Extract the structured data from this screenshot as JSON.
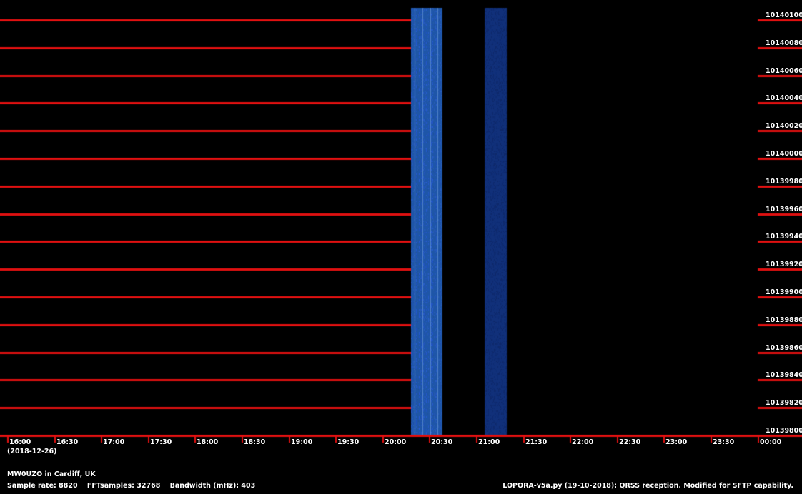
{
  "plot": {
    "background_color": "#000000",
    "grid_color": "#e01010",
    "signal_color": "#1e56a8"
  },
  "frequency_axis": {
    "unit": "Hz",
    "min": 10139800,
    "max": 10140100,
    "step": 20,
    "labels": [
      "10140100",
      "10140080",
      "10140060",
      "10140040",
      "10140020",
      "10140000",
      "10139980",
      "10139960",
      "10139940",
      "10139920",
      "10139900",
      "10139880",
      "10139860",
      "10139840",
      "10139820",
      "10139800"
    ]
  },
  "time_axis": {
    "start": "16:00",
    "end": "00:00",
    "step_minutes": 30,
    "labels": [
      "16:00",
      "16:30",
      "17:00",
      "17:30",
      "18:00",
      "18:30",
      "19:00",
      "19:30",
      "20:00",
      "20:30",
      "21:00",
      "21:30",
      "22:00",
      "22:30",
      "23:00",
      "23:30",
      "00:00"
    ],
    "date": "(2018-12-26)"
  },
  "reception_segments": [
    {
      "start": "20:18",
      "end": "20:38",
      "intensity": "bright"
    },
    {
      "start": "21:05",
      "end": "21:19",
      "intensity": "dark"
    }
  ],
  "no_data_before": "20:18",
  "footer": {
    "station": "MW0UZO in Cardiff, UK",
    "sample_rate_label": "Sample rate:",
    "sample_rate": "8820",
    "fft_label": "FFTsamples:",
    "fft_samples": "32768",
    "bandwidth_label": "Bandwidth (mHz):",
    "bandwidth": "403",
    "software": "LOPORA-v5a.py (19-10-2018): QRSS reception. Modified for SFTP capability."
  }
}
